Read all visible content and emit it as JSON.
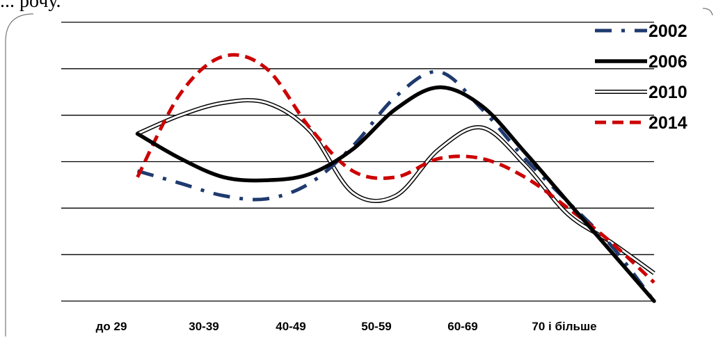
{
  "header": {
    "partial_text": "... рочу."
  },
  "chart_data": {
    "type": "line",
    "categories": [
      "до 29",
      "30-39",
      "40-49",
      "50-59",
      "60-69",
      "70 і більше"
    ],
    "grid": true,
    "legend_position": "top-right",
    "series": [
      {
        "name": "2002",
        "style": "dash-dot",
        "color": "#1f3a6e",
        "x": [
          0,
          0.5,
          1,
          1.5,
          2,
          2.5,
          3,
          3.5,
          4,
          4.5,
          5,
          5.5,
          6
        ],
        "values": [
          4.2,
          3.8,
          3.4,
          3.3,
          3.8,
          5.0,
          6.6,
          7.4,
          6.2,
          4.6,
          3.2,
          1.8,
          0.0
        ]
      },
      {
        "name": "2006",
        "style": "solid-thick",
        "color": "#000000",
        "x": [
          0,
          0.5,
          1,
          1.5,
          2,
          2.5,
          3,
          3.5,
          4,
          4.5,
          5,
          5.5,
          6
        ],
        "values": [
          5.4,
          4.6,
          4.0,
          3.9,
          4.1,
          4.9,
          6.2,
          6.9,
          6.3,
          4.8,
          3.2,
          1.6,
          0.0
        ]
      },
      {
        "name": "2010",
        "style": "double-line",
        "color": "#000000",
        "x": [
          0,
          0.5,
          1,
          1.5,
          2,
          2.5,
          3,
          3.5,
          4,
          4.5,
          5,
          5.5,
          6
        ],
        "values": [
          5.4,
          6.0,
          6.4,
          6.4,
          5.5,
          3.5,
          3.4,
          4.9,
          5.6,
          4.4,
          2.8,
          1.9,
          0.9
        ]
      },
      {
        "name": "2014",
        "style": "dashed",
        "color": "#cc0000",
        "x": [
          0,
          0.5,
          1,
          1.5,
          2,
          2.5,
          3,
          3.5,
          4,
          4.5,
          5,
          5.5,
          6
        ],
        "values": [
          4.0,
          6.7,
          7.9,
          7.5,
          5.6,
          4.2,
          4.0,
          4.6,
          4.6,
          4.0,
          3.0,
          1.9,
          0.6
        ]
      }
    ],
    "ylim": [
      0,
      9
    ]
  }
}
